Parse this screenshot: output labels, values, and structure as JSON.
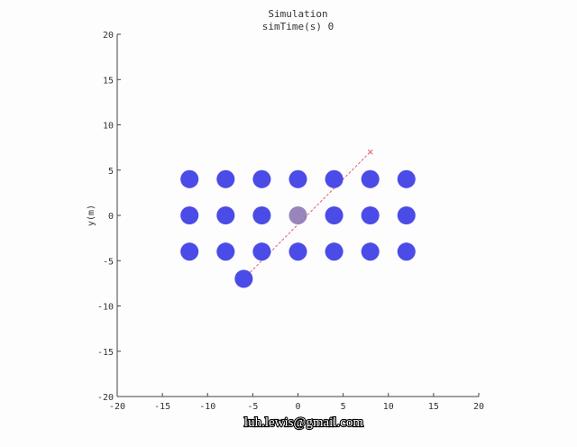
{
  "watermark": "luh.lewis@gmail.com",
  "colors": {
    "agent": "#4545e6",
    "agent_highlight": "#8c78b4",
    "trajectory": "#e06070",
    "axis": "#444444"
  },
  "chart_data": {
    "type": "scatter",
    "title": "Simulation",
    "subtitle": "simTime(s) 0",
    "xlabel": "",
    "ylabel": "y(m)",
    "xlim": [
      -20,
      20
    ],
    "ylim": [
      -20,
      20
    ],
    "xticks": [
      -20,
      -15,
      -10,
      -5,
      0,
      5,
      10,
      15,
      20
    ],
    "yticks": [
      -20,
      -15,
      -10,
      -5,
      0,
      5,
      10,
      15,
      20
    ],
    "grid": false,
    "agent_radius": 1,
    "series": [
      {
        "points": [
          [
            -12,
            4
          ],
          [
            -8,
            4
          ],
          [
            -4,
            4
          ],
          [
            0,
            4
          ],
          [
            4,
            4
          ],
          [
            8,
            4
          ],
          [
            12,
            4
          ],
          [
            -12,
            0
          ],
          [
            -8,
            0
          ],
          [
            -4,
            0
          ],
          [
            0,
            0
          ],
          [
            4,
            0
          ],
          [
            8,
            0
          ],
          [
            12,
            0
          ],
          [
            -12,
            -4
          ],
          [
            -8,
            -4
          ],
          [
            -4,
            -4
          ],
          [
            0,
            -4
          ],
          [
            4,
            -4
          ],
          [
            8,
            -4
          ],
          [
            12,
            -4
          ],
          [
            -6,
            -7
          ]
        ],
        "highlight_index": 10
      }
    ],
    "trajectory": {
      "start": [
        -6,
        -7
      ],
      "end": [
        8,
        7
      ]
    }
  }
}
